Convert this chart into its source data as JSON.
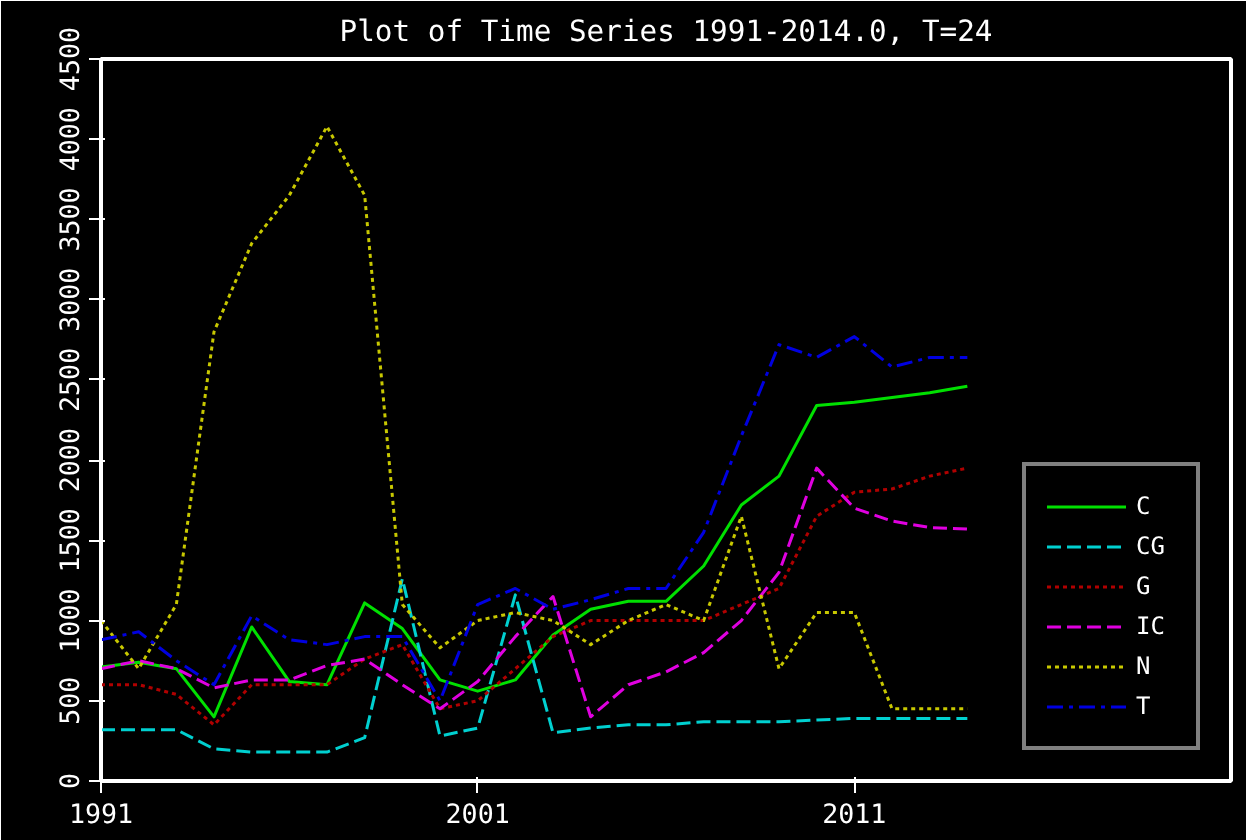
{
  "chart_data": {
    "type": "line",
    "title": "Plot of Time Series 1991-2014.0, T=24",
    "x": [
      1991,
      1992,
      1993,
      1994,
      1995,
      1996,
      1997,
      1998,
      1999,
      2000,
      2001,
      2002,
      2003,
      2004,
      2005,
      2006,
      2007,
      2008,
      2009,
      2010,
      2011,
      2012,
      2013,
      2014
    ],
    "series": [
      {
        "name": "C",
        "color": "#00e000",
        "line_style": "solid",
        "values": [
          710,
          740,
          700,
          400,
          960,
          620,
          600,
          1110,
          950,
          630,
          560,
          630,
          910,
          1070,
          1120,
          1120,
          1340,
          1720,
          1900,
          2340,
          2360,
          2390,
          2420,
          2460
        ]
      },
      {
        "name": "CG",
        "color": "#00d0d0",
        "line_style": "dashed",
        "values": [
          320,
          320,
          320,
          200,
          180,
          180,
          180,
          270,
          1260,
          280,
          330,
          1160,
          300,
          330,
          350,
          350,
          370,
          370,
          370,
          380,
          390,
          390,
          390,
          390
        ]
      },
      {
        "name": "G",
        "color": "#b00000",
        "line_style": "dotted",
        "values": [
          600,
          600,
          540,
          350,
          600,
          600,
          600,
          760,
          850,
          450,
          500,
          700,
          900,
          1000,
          1000,
          1000,
          1000,
          1100,
          1200,
          1650,
          1800,
          1820,
          1900,
          1950
        ]
      },
      {
        "name": "IC",
        "color": "#e000e0",
        "line_style": "dashed",
        "values": [
          700,
          750,
          700,
          580,
          630,
          630,
          720,
          760,
          600,
          450,
          620,
          900,
          1150,
          400,
          600,
          680,
          800,
          1000,
          1300,
          1950,
          1700,
          1620,
          1580,
          1570
        ]
      },
      {
        "name": "N",
        "color": "#c8c800",
        "line_style": "dotted",
        "values": [
          1000,
          700,
          1100,
          2800,
          3350,
          3650,
          4080,
          3650,
          1100,
          830,
          1000,
          1050,
          1000,
          850,
          1000,
          1100,
          1000,
          1650,
          700,
          1050,
          1050,
          450,
          450,
          450
        ]
      },
      {
        "name": "T",
        "color": "#0000e0",
        "line_style": "dashdot",
        "values": [
          880,
          930,
          750,
          600,
          1030,
          880,
          850,
          900,
          900,
          500,
          1100,
          1200,
          1070,
          1130,
          1200,
          1200,
          1550,
          2150,
          2720,
          2640,
          2770,
          2580,
          2640,
          2640
        ]
      }
    ],
    "xlim": [
      1991,
      2021
    ],
    "xticks": [
      1991,
      2001,
      2011
    ],
    "ylim": [
      0,
      4500
    ],
    "yticks": [
      0,
      500,
      1000,
      1500,
      2000,
      2500,
      3000,
      3500,
      4000,
      4500
    ],
    "grid": false,
    "legend": "bottom right"
  }
}
